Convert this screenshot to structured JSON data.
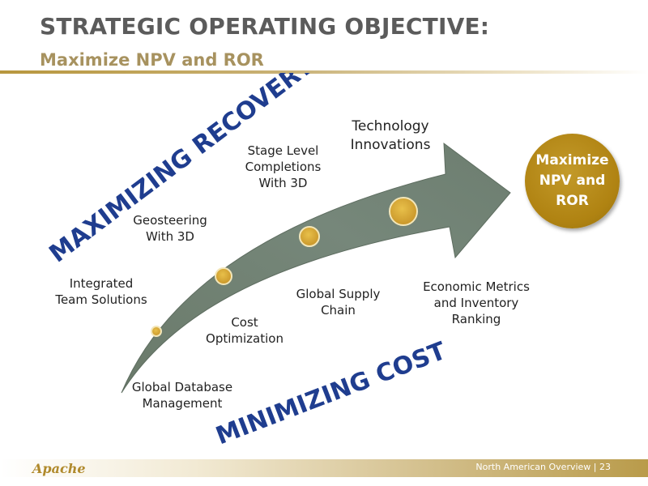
{
  "header": {
    "title": "STRATEGIC OPERATING OBJECTIVE:",
    "subtitle": "Maximize NPV and ROR"
  },
  "diagram": {
    "top_banner": "MAXIMIZING RECOVERY",
    "bottom_banner": "MINIMIZING COST",
    "upper_labels": [
      "Integrated\nTeam Solutions",
      "Geosteering\nWith 3D",
      "Stage Level\nCompletions\nWith 3D",
      "Technology\nInnovations"
    ],
    "lower_labels": [
      "Global Database\nManagement",
      "Cost\nOptimization",
      "Global Supply\nChain",
      "Economic Metrics\nand Inventory\nRanking"
    ],
    "goal": "Maximize\nNPV and\nROR"
  },
  "footer": {
    "logo": "Apache",
    "page_label": "North American Overview  |  23"
  },
  "colors": {
    "title": "#5b5b5b",
    "subtitle": "#a7925f",
    "arrow": "#6f8070",
    "banner": "#1f3d8f",
    "gold": "#b08312"
  }
}
